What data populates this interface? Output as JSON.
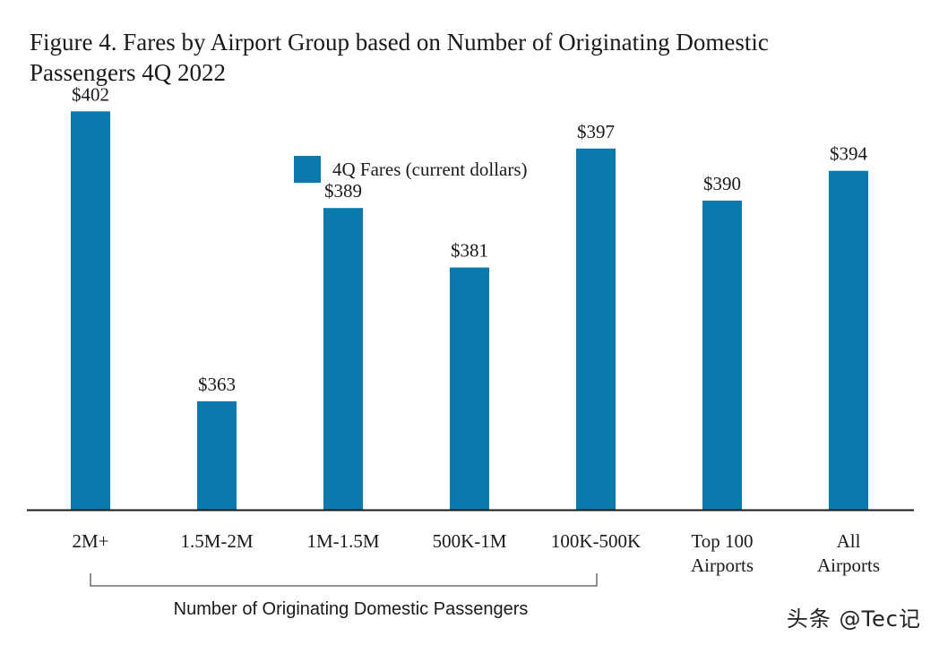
{
  "title_lines": [
    "Figure 4. Fares by Airport Group based on Number of Originating Domestic",
    "Passengers 4Q 2022"
  ],
  "chart_data": {
    "type": "bar",
    "title": "Figure 4. Fares by Airport Group based on Number of Originating Domestic Passengers 4Q 2022",
    "categories": [
      [
        "2M+"
      ],
      [
        "1.5M-2M"
      ],
      [
        "1M-1.5M"
      ],
      [
        "500K-1M"
      ],
      [
        "100K-500K"
      ],
      [
        "Top 100",
        "Airports"
      ],
      [
        "All",
        "Airports"
      ]
    ],
    "series": [
      {
        "name": "4Q Fares (current dollars)",
        "values": [
          402,
          363,
          389,
          381,
          397,
          390,
          394
        ],
        "labels": [
          "$402",
          "$363",
          "$389",
          "$381",
          "$397",
          "$390",
          "$394"
        ],
        "color": "#0a7aad"
      }
    ],
    "group_label": "Number of Originating Domestic Passengers",
    "xlabel": "",
    "ylabel": "",
    "ylim": [
      330,
      410
    ],
    "grid": false,
    "legend_position": "top-center"
  },
  "watermark": "头条 @Tec记"
}
